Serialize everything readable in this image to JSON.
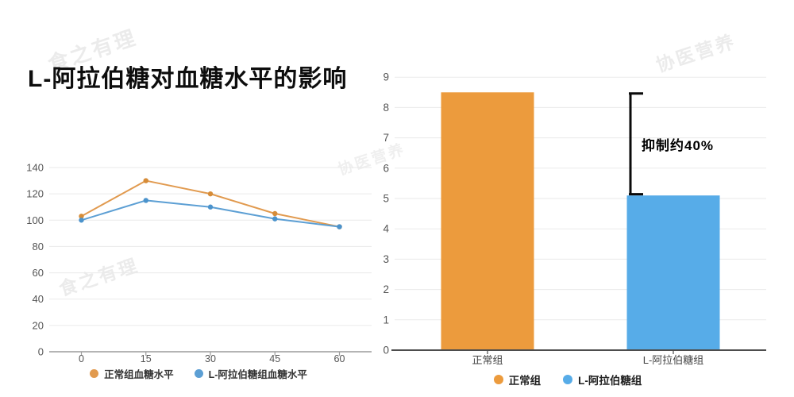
{
  "page": {
    "title": "L-阿拉伯糖对血糖水平的影响"
  },
  "watermarks": [
    {
      "text": "食之有理"
    },
    {
      "text": "食之有理"
    },
    {
      "text": "协医营养"
    },
    {
      "text": "协医营养"
    },
    {
      "text": "协医营养"
    }
  ],
  "chart_data": [
    {
      "type": "line",
      "title": "",
      "x": [
        0,
        15,
        30,
        45,
        60
      ],
      "series": [
        {
          "name": "正常组血糖水平",
          "color": "#E19A4F",
          "point_color": "#D68C38",
          "values": [
            103,
            130,
            120,
            105,
            95
          ]
        },
        {
          "name": "L-阿拉伯糖组血糖水平",
          "color": "#5C9FD4",
          "point_color": "#4B93CC",
          "values": [
            100,
            115,
            110,
            101,
            95
          ]
        }
      ],
      "ylim": [
        0,
        140
      ],
      "ytick_step": 20,
      "grid": true,
      "legend_position": "bottom"
    },
    {
      "type": "bar",
      "title": "",
      "categories": [
        "正常组",
        "L-阿拉伯糖组"
      ],
      "values": [
        8.5,
        5.1
      ],
      "colors": [
        "#EC9B3D",
        "#57ACE8"
      ],
      "ylim": [
        0,
        9
      ],
      "ytick_step": 1,
      "grid": true,
      "annotation": "抑制约40%",
      "legend": [
        "正常组",
        "L-阿拉伯糖组"
      ],
      "legend_position": "bottom"
    }
  ]
}
